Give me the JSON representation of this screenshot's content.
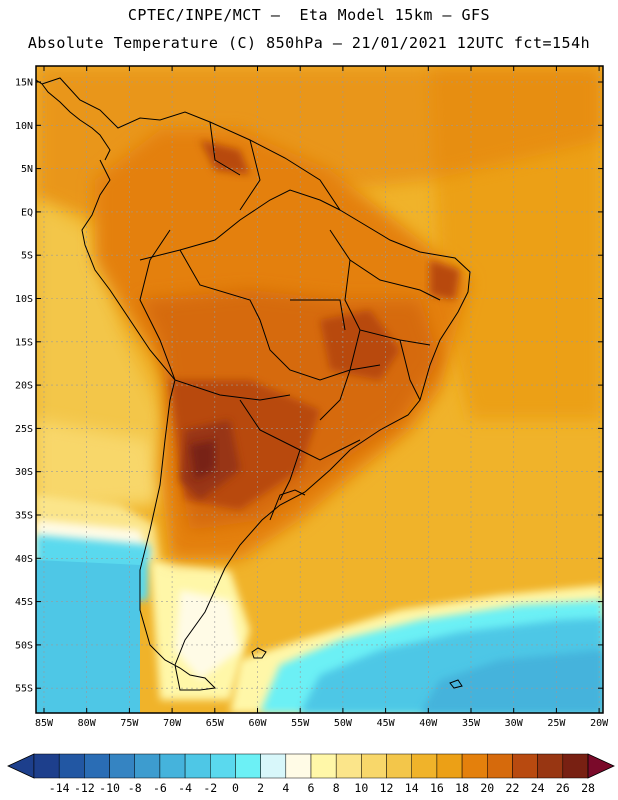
{
  "header": {
    "line1": "CPTEC/INPE/MCT –  Eta Model 15km – GFS",
    "line2": "Absolute Temperature (C) 850hPa – 21/01/2021 12UTC fct=154h"
  },
  "map": {
    "lat_labels": [
      "15N",
      "10N",
      "5N",
      "EQ",
      "5S",
      "10S",
      "15S",
      "20S",
      "25S",
      "30S",
      "35S",
      "40S",
      "45S",
      "50S",
      "55S"
    ],
    "lon_labels": [
      "85W",
      "80W",
      "75W",
      "70W",
      "65W",
      "60W",
      "55W",
      "50W",
      "45W",
      "40W",
      "35W",
      "30W",
      "25W",
      "20W"
    ]
  },
  "colorbar": {
    "labels": [
      "-14",
      "-12",
      "-10",
      "-8",
      "-6",
      "-4",
      "-2",
      "0",
      "2",
      "4",
      "6",
      "8",
      "10",
      "12",
      "14",
      "16",
      "18",
      "20",
      "22",
      "24",
      "26",
      "28"
    ],
    "colors": [
      "#1d3f8c",
      "#2257a3",
      "#2a6db5",
      "#3584c2",
      "#3d9ccf",
      "#45b3dc",
      "#4ec7e6",
      "#5ad9ee",
      "#6cf0f5",
      "#d8f7fa",
      "#fffbe6",
      "#fff7a8",
      "#fbe58a",
      "#f8d76a",
      "#f3c64a",
      "#f0b32a",
      "#eca016",
      "#e4800c",
      "#d66a0c",
      "#b84a10",
      "#983612",
      "#782012"
    ]
  }
}
